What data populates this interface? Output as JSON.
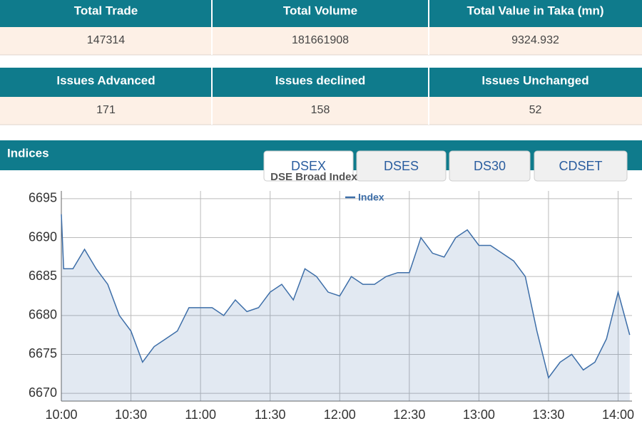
{
  "tables": [
    {
      "headers": [
        "Total Trade",
        "Total Volume",
        "Total Value in Taka (mn)"
      ],
      "row": [
        "147314",
        "181661908",
        "9324.932"
      ]
    },
    {
      "headers": [
        "Issues Advanced",
        "Issues declined",
        "Issues Unchanged"
      ],
      "row": [
        "171",
        "158",
        "52"
      ]
    }
  ],
  "section_title": "Indices",
  "tabs": [
    "DSEX",
    "DSES",
    "DS30",
    "CDSET"
  ],
  "chart_data": {
    "type": "line",
    "title": "DSE Broad Index",
    "x": [
      "10:00",
      "10:01",
      "10:05",
      "10:10",
      "10:15",
      "10:20",
      "10:25",
      "10:30",
      "10:35",
      "10:40",
      "10:45",
      "10:50",
      "10:55",
      "11:00",
      "11:05",
      "11:10",
      "11:15",
      "11:20",
      "11:25",
      "11:30",
      "11:35",
      "11:40",
      "11:45",
      "11:50",
      "11:55",
      "12:00",
      "12:05",
      "12:10",
      "12:15",
      "12:20",
      "12:25",
      "12:30",
      "12:35",
      "12:40",
      "12:45",
      "12:50",
      "12:55",
      "13:00",
      "13:05",
      "13:10",
      "13:15",
      "13:20",
      "13:25",
      "13:30",
      "13:35",
      "13:40",
      "13:45",
      "13:50",
      "13:55",
      "14:00",
      "14:05"
    ],
    "series": [
      {
        "name": "Index",
        "color": "#3d6ea8",
        "values": [
          6693,
          6686,
          6686,
          6688.5,
          6686,
          6684,
          6680,
          6678,
          6674,
          6676,
          6677,
          6678,
          6681,
          6681,
          6681,
          6680,
          6682,
          6680.5,
          6681,
          6683,
          6684,
          6682,
          6686,
          6685,
          6683,
          6682.5,
          6685,
          6684,
          6684,
          6685,
          6685.5,
          6685.5,
          6690,
          6688,
          6687.5,
          6690,
          6691,
          6689,
          6689,
          6688,
          6687,
          6685,
          6678,
          6672,
          6674,
          6675,
          6673,
          6674,
          6677,
          6683,
          6677.5
        ]
      }
    ],
    "xlim": [
      "10:00",
      "14:06"
    ],
    "xticks": [
      "10:00",
      "10:30",
      "11:00",
      "11:30",
      "12:00",
      "12:30",
      "13:00",
      "13:30",
      "14:00"
    ],
    "ylim": [
      6669,
      6696
    ],
    "yticks": [
      6670,
      6675,
      6680,
      6685,
      6690,
      6695
    ],
    "grid": true
  }
}
